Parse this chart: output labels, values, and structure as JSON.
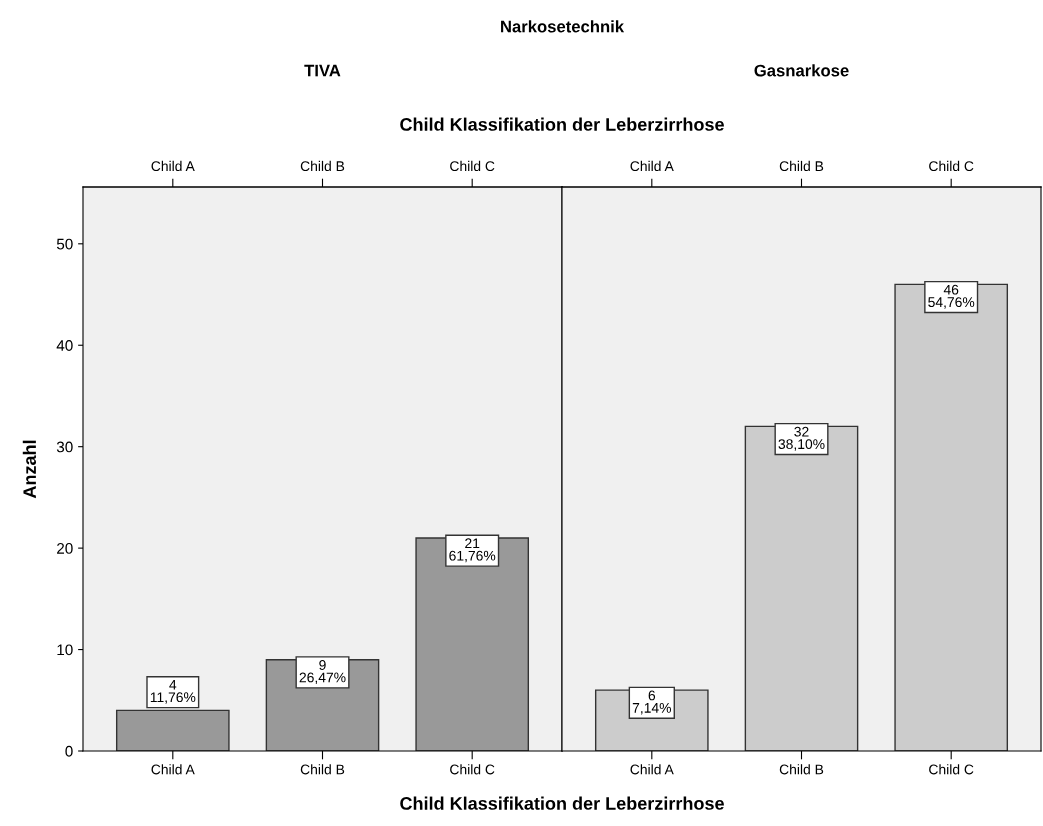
{
  "chart_data": [
    {
      "type": "bar",
      "title": "TIVA",
      "annotations": [
        "Narkosetechnik"
      ],
      "xlabel": "Child Klassifikation der Leberzirrhose",
      "x2label": "Child Klassifikation der Leberzirrhose",
      "ylabel": "Anzahl",
      "categories": [
        "Child A",
        "Child B",
        "Child C"
      ],
      "values": [
        4,
        9,
        21
      ],
      "color": "#999999",
      "value_labels": [
        "4\n11,76%",
        "9\n26,47%",
        "21\n61,76%"
      ],
      "ylim": [
        0,
        55.6
      ],
      "yticks": [
        0,
        10,
        20,
        30,
        40,
        50
      ],
      "grid": false
    },
    {
      "type": "bar",
      "title": "Gasnarkose",
      "categories": [
        "Child A",
        "Child B",
        "Child C"
      ],
      "values": [
        6,
        32,
        46
      ],
      "color": "#cccccc",
      "value_labels": [
        "6\n7,14%",
        "32\n38,10%",
        "46\n54,76%"
      ],
      "ylim": [
        0,
        55.6
      ],
      "yticks": [
        0,
        10,
        20,
        30,
        40,
        50
      ],
      "tick_labels": "x",
      "grid": false
    }
  ]
}
